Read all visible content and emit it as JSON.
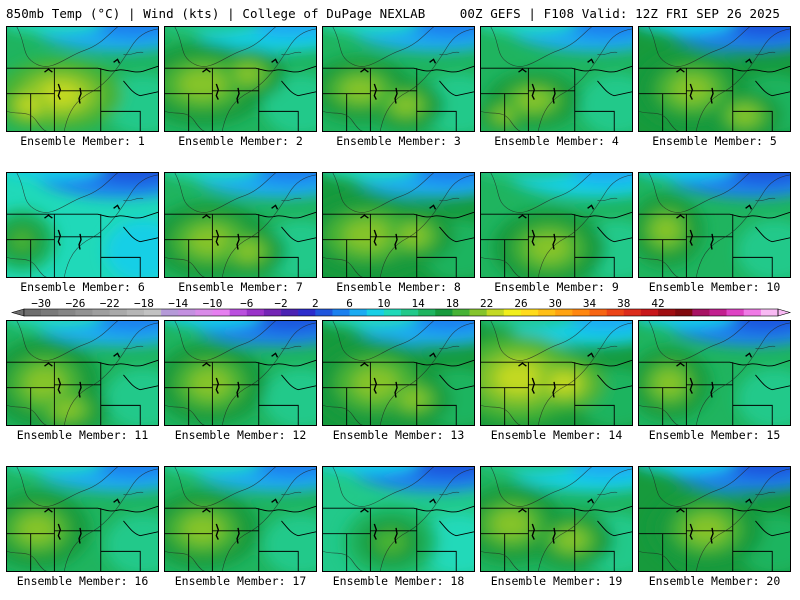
{
  "header": {
    "left": "850mb Temp (°C) | Wind (kts) | College of DuPage NEXLAB",
    "right": "00Z GEFS | F108 Valid: 12Z FRI SEP 26 2025"
  },
  "label_prefix": "Ensemble Member:",
  "members": [
    {
      "id": 1,
      "label": "Ensemble Member: 1",
      "hot": [
        [
          0.35,
          0.65,
          0.33,
          0.28
        ],
        [
          0.15,
          0.75,
          0.16,
          0.18
        ]
      ],
      "northTemp": 8,
      "body": 16,
      "coreTemp": 24
    },
    {
      "id": 2,
      "label": "Ensemble Member: 2",
      "hot": [
        [
          0.25,
          0.55,
          0.35,
          0.32
        ],
        [
          0.55,
          0.45,
          0.2,
          0.2
        ]
      ],
      "northTemp": 10,
      "body": 16,
      "coreTemp": 22
    },
    {
      "id": 3,
      "label": "Ensemble Member: 3",
      "hot": [
        [
          0.25,
          0.6,
          0.28,
          0.25
        ],
        [
          0.55,
          0.75,
          0.2,
          0.2
        ]
      ],
      "northTemp": 8,
      "body": 15,
      "coreTemp": 22
    },
    {
      "id": 4,
      "label": "Ensemble Member: 4",
      "hot": [
        [
          0.35,
          0.7,
          0.25,
          0.22
        ],
        [
          0.15,
          0.85,
          0.14,
          0.14
        ]
      ],
      "northTemp": 8,
      "body": 16,
      "coreTemp": 22
    },
    {
      "id": 5,
      "label": "Ensemble Member: 5",
      "hot": [
        [
          0.35,
          0.6,
          0.3,
          0.3
        ],
        [
          0.7,
          0.85,
          0.2,
          0.2
        ]
      ],
      "northTemp": 6,
      "body": 17,
      "coreTemp": 22
    },
    {
      "id": 6,
      "label": "Ensemble Member: 6",
      "hot": [
        [
          0.1,
          0.65,
          0.18,
          0.24
        ]
      ],
      "northTemp": 6,
      "body": 12,
      "coreTemp": 20
    },
    {
      "id": 7,
      "label": "Ensemble Member: 7",
      "hot": [
        [
          0.3,
          0.65,
          0.32,
          0.3
        ],
        [
          0.55,
          0.75,
          0.2,
          0.2
        ]
      ],
      "northTemp": 8,
      "body": 15,
      "coreTemp": 22
    },
    {
      "id": 8,
      "label": "Ensemble Member: 8",
      "hot": [
        [
          0.3,
          0.6,
          0.36,
          0.32
        ],
        [
          0.6,
          0.6,
          0.22,
          0.22
        ]
      ],
      "northTemp": 8,
      "body": 17,
      "coreTemp": 22
    },
    {
      "id": 9,
      "label": "Ensemble Member: 9",
      "hot": [
        [
          0.45,
          0.72,
          0.3,
          0.3
        ]
      ],
      "northTemp": 10,
      "body": 15,
      "coreTemp": 22
    },
    {
      "id": 10,
      "label": "Ensemble Member: 10",
      "hot": [
        [
          0.18,
          0.55,
          0.2,
          0.28
        ]
      ],
      "northTemp": 6,
      "body": 15,
      "coreTemp": 22
    },
    {
      "id": 11,
      "label": "Ensemble Member: 11",
      "hot": [
        [
          0.25,
          0.6,
          0.3,
          0.35
        ],
        [
          0.4,
          0.85,
          0.22,
          0.2
        ]
      ],
      "northTemp": 8,
      "body": 16,
      "coreTemp": 22
    },
    {
      "id": 12,
      "label": "Ensemble Member: 12",
      "hot": [
        [
          0.3,
          0.6,
          0.3,
          0.32
        ]
      ],
      "northTemp": 6,
      "body": 15,
      "coreTemp": 22
    },
    {
      "id": 13,
      "label": "Ensemble Member: 13",
      "hot": [
        [
          0.35,
          0.6,
          0.34,
          0.34
        ],
        [
          0.6,
          0.75,
          0.2,
          0.2
        ]
      ],
      "northTemp": 8,
      "body": 17,
      "coreTemp": 22
    },
    {
      "id": 14,
      "label": "Ensemble Member: 14",
      "hot": [
        [
          0.25,
          0.55,
          0.34,
          0.34
        ],
        [
          0.55,
          0.6,
          0.22,
          0.22
        ]
      ],
      "northTemp": 10,
      "body": 17,
      "coreTemp": 24
    },
    {
      "id": 15,
      "label": "Ensemble Member: 15",
      "hot": [
        [
          0.2,
          0.6,
          0.22,
          0.28
        ]
      ],
      "northTemp": 6,
      "body": 15,
      "coreTemp": 22
    },
    {
      "id": 16,
      "label": "Ensemble Member: 16",
      "hot": [
        [
          0.2,
          0.6,
          0.28,
          0.3
        ]
      ],
      "northTemp": 8,
      "body": 16,
      "coreTemp": 22
    },
    {
      "id": 17,
      "label": "Ensemble Member: 17",
      "hot": [
        [
          0.25,
          0.6,
          0.3,
          0.3
        ]
      ],
      "northTemp": 8,
      "body": 16,
      "coreTemp": 22
    },
    {
      "id": 18,
      "label": "Ensemble Member: 18",
      "hot": [
        [
          0.45,
          0.72,
          0.25,
          0.28
        ]
      ],
      "northTemp": 6,
      "body": 14,
      "coreTemp": 20
    },
    {
      "id": 19,
      "label": "Ensemble Member: 19",
      "hot": [
        [
          0.2,
          0.55,
          0.28,
          0.3
        ],
        [
          0.6,
          0.7,
          0.22,
          0.22
        ]
      ],
      "northTemp": 10,
      "body": 16,
      "coreTemp": 22
    },
    {
      "id": 20,
      "label": "Ensemble Member: 20",
      "hot": [
        [
          0.45,
          0.6,
          0.3,
          0.3
        ]
      ],
      "northTemp": 6,
      "body": 17,
      "coreTemp": 22
    }
  ],
  "colorbar": {
    "labels": [
      "−30",
      "−26",
      "−22",
      "−18",
      "−14",
      "−10",
      "−6",
      "−2",
      "2",
      "6",
      "10",
      "14",
      "18",
      "22",
      "26",
      "30",
      "34",
      "38",
      "42"
    ],
    "values": [
      -30,
      -26,
      -22,
      -18,
      -14,
      -10,
      -6,
      -2,
      2,
      6,
      10,
      14,
      18,
      22,
      26,
      30,
      34,
      38,
      42
    ],
    "step": 2,
    "colors": [
      "#6e6e6e",
      "#7a7a7a",
      "#868686",
      "#929292",
      "#9e9e9e",
      "#aaaaaa",
      "#b6b6b6",
      "#c2c2c2",
      "#b59ad8",
      "#c490e0",
      "#d98be8",
      "#e67ff0",
      "#ba4fde",
      "#9a33c9",
      "#7425b5",
      "#4b22b3",
      "#2c2ccc",
      "#1f55dd",
      "#1b80ef",
      "#1aabf2",
      "#17cfe6",
      "#20d9b9",
      "#22c98a",
      "#1fb45f",
      "#179a3c",
      "#46b236",
      "#85c42c",
      "#c3d924",
      "#f1ef1b",
      "#ffdb1b",
      "#ffbf16",
      "#ffa312",
      "#ff8710",
      "#f76513",
      "#ec4417",
      "#dc2c1c",
      "#c8171b",
      "#a00e12",
      "#800a0e",
      "#a71363",
      "#c2208f",
      "#de43c4",
      "#f07ae6",
      "#f9baf4"
    ]
  }
}
